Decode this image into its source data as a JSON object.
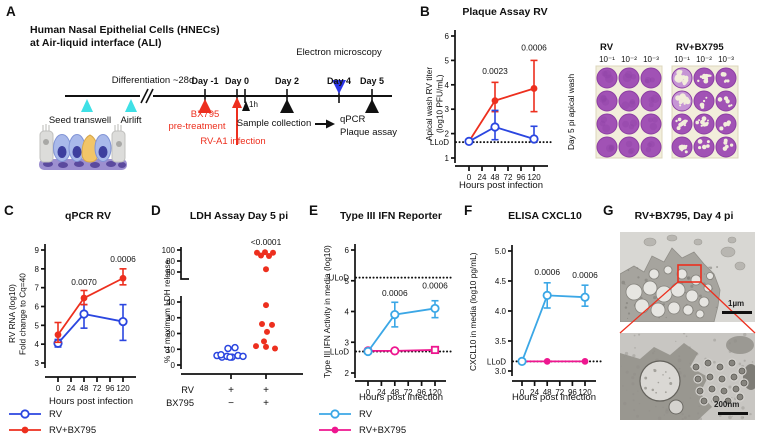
{
  "colors": {
    "blue": "#2b46e0",
    "red": "#ed2f1e",
    "cyan": "#3ba7e6",
    "magenta": "#ee168f",
    "cyan_triangle": "#3fe0e6",
    "em_triangle": "#2b35e8",
    "well_purple": "#a152b5",
    "well_light": "#c695d5",
    "plate_cream": "#f2eedb"
  },
  "panels": {
    "A": {
      "label": "A",
      "title_line1": "Human Nasal Epithelial Cells (HNECs)",
      "title_line2": "at Air-liquid interface (ALI)",
      "timeline": {
        "differentiation": "Differentiation ~28d",
        "days": [
          "Day -1",
          "Day 0",
          "Day 2",
          "Day 4",
          "Day 5"
        ],
        "one_hour": "1h",
        "seed_transwell": "Seed transwell",
        "airlift": "Airlift",
        "bx795": "BX795",
        "pretreatment": "pre-treatment",
        "rv_infection": "RV-A1 infection",
        "sample_collection": "Sample collection",
        "qpcr": "qPCR",
        "plaque_assay": "Plaque assay",
        "electron_microscopy": "Electron microscopy"
      }
    },
    "B": {
      "label": "B",
      "plaque": {
        "side_label": "Day 5 pi apical wash",
        "groups": [
          {
            "title": "RV",
            "dilutions": [
              "10⁻¹",
              "10⁻²",
              "10⁻³"
            ],
            "lysed": [
              [
                0,
                0,
                0
              ],
              [
                0,
                0,
                0
              ],
              [
                0,
                0,
                0
              ],
              [
                0,
                0,
                0
              ]
            ]
          },
          {
            "title": "RV+BX795",
            "dilutions": [
              "10⁻¹",
              "10⁻²",
              "10⁻³"
            ],
            "lysed": [
              [
                3,
                2,
                1
              ],
              [
                3,
                1,
                1
              ],
              [
                2,
                2,
                1
              ],
              [
                2,
                1,
                1
              ]
            ]
          }
        ]
      }
    },
    "C": {
      "label": "C"
    },
    "D": {
      "label": "D"
    },
    "E": {
      "label": "E"
    },
    "F": {
      "label": "F"
    },
    "G": {
      "label": "G",
      "title": "RV+BX795, Day 4 pi",
      "scale_top": "1µm",
      "scale_bottom": "200nm"
    }
  },
  "chart_data": {
    "B": {
      "type": "line",
      "title": "Plaque Assay RV",
      "xlabel": "Hours post infection",
      "ylabel": "Apical wash RV titer\n(log10 PFU/mL)",
      "x_ticks": [
        0,
        24,
        48,
        72,
        96,
        120
      ],
      "ylim": [
        1,
        6
      ],
      "y_ticks": [
        1,
        2,
        3,
        4,
        5,
        6
      ],
      "thresholds": [
        {
          "label": "LLoD",
          "value": 1.65
        }
      ],
      "series": [
        {
          "name": "RV+BX795",
          "color": "red",
          "marker": "filled-circle",
          "x": [
            0,
            48,
            120
          ],
          "y": [
            1.68,
            3.35,
            3.85
          ],
          "lo": [
            1.68,
            2.9,
            2.9
          ],
          "hi": [
            1.68,
            4.1,
            5.0
          ]
        },
        {
          "name": "RV",
          "color": "blue",
          "marker": "open-circle",
          "x": [
            0,
            48,
            120
          ],
          "y": [
            1.68,
            2.27,
            1.78
          ],
          "lo": [
            1.68,
            1.75,
            1.68
          ],
          "hi": [
            1.68,
            2.95,
            2.3
          ]
        }
      ],
      "annotations": [
        {
          "text": "0.0023",
          "x": 48,
          "y": 4.45
        },
        {
          "text": "0.0006",
          "x": 120,
          "y": 5.4
        }
      ],
      "legend_note": "points at 0, 48 and 120 hpi"
    },
    "C": {
      "type": "line",
      "title": "qPCR RV",
      "xlabel": "Hours post infection",
      "ylabel": "RV RNA (log10)\nFold change to Cq=40",
      "x_ticks": [
        0,
        24,
        48,
        72,
        96,
        120
      ],
      "ylim": [
        3,
        9
      ],
      "y_ticks": [
        3,
        4,
        5,
        6,
        7,
        8,
        9
      ],
      "series": [
        {
          "name": "RV",
          "color": "blue",
          "marker": "open-circle",
          "x": [
            0,
            48,
            120
          ],
          "y": [
            4.05,
            5.6,
            5.2
          ],
          "lo": [
            3.85,
            4.85,
            4.2
          ],
          "hi": [
            4.25,
            6.1,
            6.1
          ]
        },
        {
          "name": "RV+BX795",
          "color": "red",
          "marker": "filled-circle",
          "x": [
            0,
            48,
            120
          ],
          "y": [
            4.5,
            6.45,
            7.5
          ],
          "lo": [
            4.1,
            6.1,
            7.15
          ],
          "hi": [
            5.15,
            6.85,
            8.0
          ]
        }
      ],
      "annotations": [
        {
          "text": "0.0070",
          "x": 48,
          "y": 7.15
        },
        {
          "text": "0.0006",
          "x": 120,
          "y": 8.35
        }
      ]
    },
    "D": {
      "type": "scatter",
      "title": "LDH Assay Day 5 pi",
      "ylabel": "% of maximum LDH release",
      "p_value": "<0.0001",
      "upper_ticks": [
        100,
        80,
        60
      ],
      "lower_ticks": [
        40,
        30,
        20,
        10,
        0
      ],
      "row1_label": "RV",
      "row2_label": "BX795",
      "groups": [
        {
          "name": "RV",
          "color": "blue",
          "marker": "open-circle",
          "row1": "+",
          "row2": "−",
          "values": [
            10.5,
            11,
            6,
            5,
            5.5,
            6.5,
            5,
            6,
            5.5,
            5
          ],
          "jitter": [
            -3,
            4,
            -14,
            -9,
            -4,
            -10,
            1,
            7,
            12,
            -1
          ]
        },
        {
          "name": "RV+BX795",
          "color": "red",
          "marker": "filled-circle",
          "row1": "+",
          "row2": "+",
          "values": [
            95,
            96,
            95,
            90,
            89,
            65,
            38,
            26,
            25.5,
            21,
            15,
            12,
            11.5,
            10.5
          ],
          "jitter": [
            -9,
            -1,
            7,
            -5,
            3,
            0,
            0,
            -4,
            6,
            1,
            -2,
            -10,
            0,
            9
          ]
        }
      ]
    },
    "E": {
      "type": "line",
      "title": "Type III IFN Reporter",
      "xlabel": "Hours post infection",
      "ylabel": "Type III IFN Activity in media (log10)",
      "x_ticks": [
        0,
        24,
        48,
        72,
        96,
        120
      ],
      "ylim": [
        2,
        6
      ],
      "y_ticks": [
        2,
        3,
        4,
        5,
        6
      ],
      "thresholds": [
        {
          "label": "ULoD",
          "value": 5.1
        },
        {
          "label": "LLoD",
          "value": 2.7
        }
      ],
      "series": [
        {
          "name": "RV+BX795",
          "color": "magenta",
          "marker": "open-circle",
          "markers": [
            "open-circle",
            "open-circle",
            "open-square"
          ],
          "x": [
            0,
            48,
            120
          ],
          "y": [
            2.72,
            2.72,
            2.75
          ],
          "lo": [
            2.72,
            2.72,
            2.75
          ],
          "hi": [
            2.72,
            2.72,
            2.75
          ]
        },
        {
          "name": "RV",
          "color": "cyan",
          "marker": "open-circle",
          "x": [
            0,
            48,
            120
          ],
          "y": [
            2.7,
            3.9,
            4.1
          ],
          "lo": [
            2.7,
            3.5,
            3.8
          ],
          "hi": [
            2.7,
            4.3,
            4.35
          ]
        }
      ],
      "annotations": [
        {
          "text": "0.0006",
          "x": 48,
          "y": 4.5
        },
        {
          "text": "0.0006",
          "x": 120,
          "y": 4.75
        }
      ]
    },
    "F": {
      "type": "line",
      "title": "ELISA CXCL10",
      "xlabel": "Hours post infection",
      "ylabel": "CXCL10 in media (log10 pg/mL)",
      "x_ticks": [
        0,
        24,
        48,
        72,
        96,
        120
      ],
      "ylim": [
        3,
        5
      ],
      "y_ticks": [
        3,
        3.5,
        4,
        4.5,
        5
      ],
      "y_tick_labels": [
        "3.0",
        "3.5",
        "4.0",
        "4.5",
        "5.0"
      ],
      "thresholds": [
        {
          "label": "LLoD",
          "value": 3.16
        }
      ],
      "series": [
        {
          "name": "RV+BX795",
          "color": "magenta",
          "marker": "filled-circle",
          "x": [
            0,
            48,
            120
          ],
          "y": [
            3.16,
            3.16,
            3.16
          ],
          "lo": [
            3.16,
            3.16,
            3.16
          ],
          "hi": [
            3.16,
            3.16,
            3.16
          ]
        },
        {
          "name": "RV",
          "color": "cyan",
          "marker": "open-circle",
          "x": [
            0,
            48,
            120
          ],
          "y": [
            3.16,
            4.26,
            4.23
          ],
          "lo": [
            3.16,
            4.05,
            4.08
          ],
          "hi": [
            3.16,
            4.47,
            4.43
          ]
        }
      ],
      "annotations": [
        {
          "text": "0.0006",
          "x": 48,
          "y": 4.6
        },
        {
          "text": "0.0006",
          "x": 120,
          "y": 4.55
        }
      ]
    }
  },
  "legends": {
    "C": {
      "items": [
        {
          "label": "RV",
          "color": "blue",
          "marker": "open-circle"
        },
        {
          "label": "RV+BX795",
          "color": "red",
          "marker": "filled-circle"
        }
      ]
    },
    "E": {
      "items": [
        {
          "label": "RV",
          "color": "cyan",
          "marker": "open-circle"
        },
        {
          "label": "RV+BX795",
          "color": "magenta",
          "marker": "filled-circle"
        }
      ]
    }
  }
}
